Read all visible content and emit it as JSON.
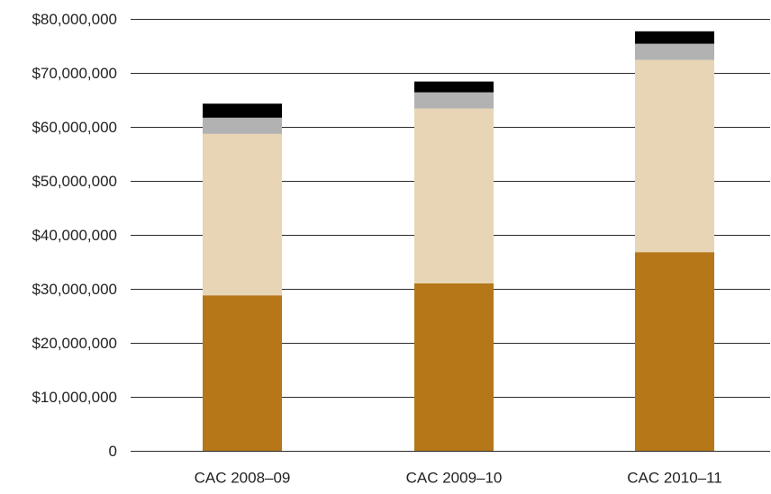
{
  "chart_data": {
    "type": "bar",
    "stacked": true,
    "title": "",
    "xlabel": "",
    "ylabel": "",
    "categories": [
      "CAC 2008–09",
      "CAC 2009–10",
      "CAC 2010–11"
    ],
    "ylim": [
      0,
      80000000
    ],
    "yticks": [
      0,
      10000000,
      20000000,
      30000000,
      40000000,
      50000000,
      60000000,
      70000000,
      80000000
    ],
    "ytick_labels": [
      "0",
      "$10,000,000",
      "$20,000,000",
      "$30,000,000",
      "$40,000,000",
      "$50,000,000",
      "$60,000,000",
      "$70,000,000",
      "$80,000,000"
    ],
    "grid": true,
    "legend": "none",
    "series": [
      {
        "values": [
          28800000,
          31000000,
          36800000
        ],
        "color": "#b57718"
      },
      {
        "values": [
          29900000,
          32400000,
          35600000
        ],
        "color": "#e8d5b5"
      },
      {
        "values": [
          3000000,
          3000000,
          3000000
        ],
        "color": "#b2b2b2"
      },
      {
        "values": [
          2600000,
          2000000,
          2300000
        ],
        "color": "#000000"
      }
    ]
  }
}
